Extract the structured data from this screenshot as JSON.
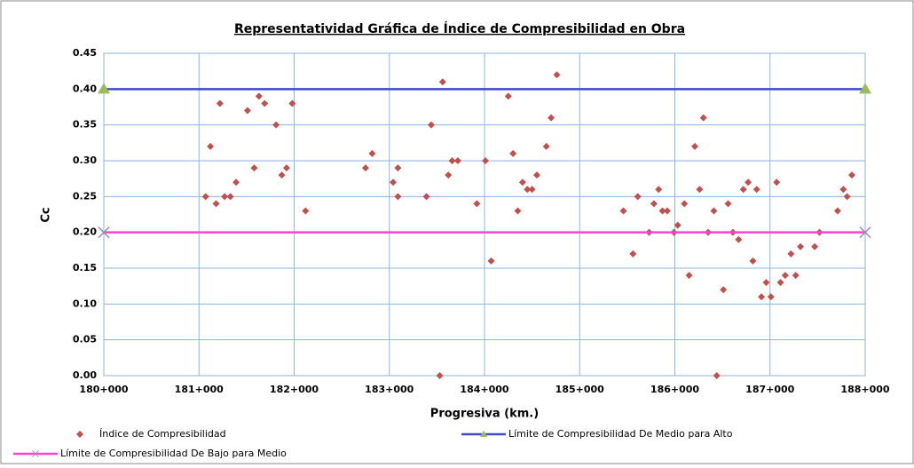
{
  "chart_data": {
    "type": "scatter",
    "title": "Representatividad Gráfica de Índice de Compresibilidad en Obra",
    "x_label": "Progresiva (km.)",
    "y_label": "Cc",
    "xlim": [
      180000,
      188000
    ],
    "xticks": [
      {
        "value": 180000,
        "label": "180+000"
      },
      {
        "value": 181000,
        "label": "181+000"
      },
      {
        "value": 182000,
        "label": "182+000"
      },
      {
        "value": 183000,
        "label": "183+000"
      },
      {
        "value": 184000,
        "label": "184+000"
      },
      {
        "value": 185000,
        "label": "185+000"
      },
      {
        "value": 186000,
        "label": "186+000"
      },
      {
        "value": 187000,
        "label": "187+000"
      },
      {
        "value": 188000,
        "label": "188+000"
      }
    ],
    "ylim": [
      0,
      0.45
    ],
    "yticks": [
      {
        "value": 0,
        "label": "0.00"
      },
      {
        "value": 0.05,
        "label": "0.05"
      },
      {
        "value": 0.1,
        "label": "0.10"
      },
      {
        "value": 0.15,
        "label": "0.15"
      },
      {
        "value": 0.2,
        "label": "0.20"
      },
      {
        "value": 0.25,
        "label": "0.25"
      },
      {
        "value": 0.3,
        "label": "0.30"
      },
      {
        "value": 0.35,
        "label": "0.35"
      },
      {
        "value": 0.4,
        "label": "0.40"
      },
      {
        "value": 0.45,
        "label": "0.45"
      }
    ],
    "grid": true,
    "series": [
      {
        "name": "Índice de Compresibilidad",
        "color": "#c0504d",
        "mode": "markers",
        "marker": "diamond",
        "x": [
          181070,
          181120,
          181180,
          181220,
          181270,
          181330,
          181390,
          181510,
          181580,
          181630,
          181690,
          181810,
          181870,
          181920,
          181980,
          182120,
          182750,
          182820,
          183040,
          183090,
          183090,
          183390,
          183440,
          183530,
          183560,
          183620,
          183660,
          183720,
          183920,
          184010,
          184070,
          184250,
          184300,
          184350,
          184400,
          184450,
          184500,
          184550,
          184650,
          184700,
          184760,
          185460,
          185560,
          185610,
          185730,
          185780,
          185830,
          185870,
          185920,
          185990,
          186030,
          186100,
          186150,
          186210,
          186260,
          186300,
          186350,
          186410,
          186440,
          186510,
          186560,
          186610,
          186670,
          186720,
          186770,
          186820,
          186860,
          186910,
          186960,
          187010,
          187070,
          187110,
          187160,
          187220,
          187270,
          187320,
          187470,
          187520,
          187710,
          187770,
          187810,
          187860
        ],
        "values": [
          0.25,
          0.32,
          0.24,
          0.38,
          0.25,
          0.25,
          0.27,
          0.37,
          0.29,
          0.39,
          0.38,
          0.35,
          0.28,
          0.29,
          0.38,
          0.23,
          0.29,
          0.31,
          0.27,
          0.29,
          0.25,
          0.25,
          0.35,
          0,
          0.41,
          0.28,
          0.3,
          0.3,
          0.24,
          0.3,
          0.16,
          0.39,
          0.31,
          0.23,
          0.27,
          0.26,
          0.26,
          0.28,
          0.32,
          0.36,
          0.42,
          0.23,
          0.17,
          0.25,
          0.2,
          0.24,
          0.26,
          0.23,
          0.23,
          0.2,
          0.21,
          0.24,
          0.14,
          0.32,
          0.26,
          0.36,
          0.2,
          0.23,
          0,
          0.12,
          0.24,
          0.2,
          0.19,
          0.26,
          0.27,
          0.16,
          0.26,
          0.11,
          0.13,
          0.11,
          0.27,
          0.13,
          0.14,
          0.17,
          0.14,
          0.18,
          0.18,
          0.2,
          0.23,
          0.26,
          0.25,
          0.28
        ]
      },
      {
        "name": "Límite de Compresibilidad De Medio para Alto",
        "color": "#3f48cc",
        "marker_color": "#9bbb59",
        "mode": "lines",
        "marker": "triangle",
        "x": [
          180000,
          188000
        ],
        "values": [
          0.4,
          0.4
        ]
      },
      {
        "name": "Límite de Compresibilidad De Bajo para Medio",
        "color": "#ff44cc",
        "marker_color": "#9b8fb0",
        "mode": "lines",
        "marker": "x",
        "x": [
          180000,
          188000
        ],
        "values": [
          0.2,
          0.2
        ]
      }
    ]
  }
}
